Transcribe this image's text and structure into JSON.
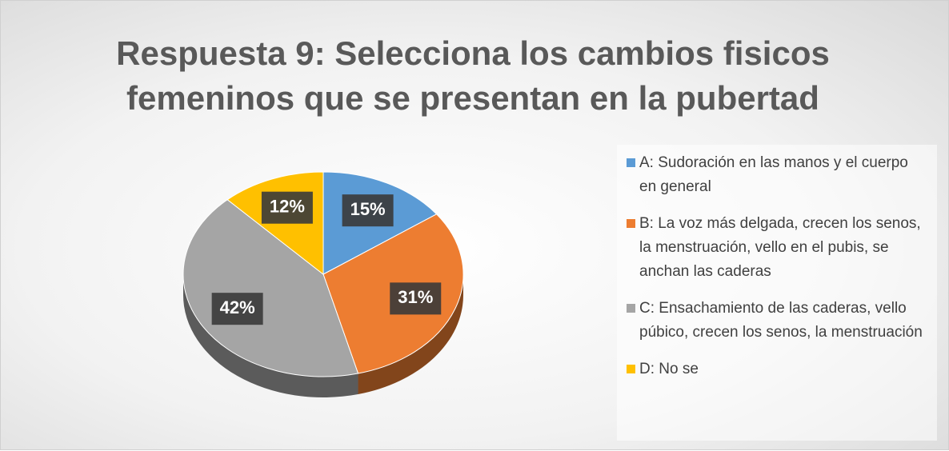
{
  "chart_data": {
    "type": "pie",
    "title": "Respuesta 9: Selecciona los cambios fisicos femeninos que se presentan en la pubertad",
    "categories": [
      "A:  Sudoración en las manos y el cuerpo en general",
      "B:  La voz más delgada, crecen los senos, la menstruación, vello en el pubis, se anchan las caderas",
      "C:  Ensachamiento de las caderas, vello púbico, crecen los senos, la menstruación",
      "D:  No se"
    ],
    "values": [
      15,
      31,
      42,
      12
    ],
    "value_labels": [
      "15%",
      "31%",
      "42%",
      "12%"
    ],
    "colors": [
      "#5b9bd5",
      "#ed7d31",
      "#a5a5a5",
      "#ffc000"
    ],
    "legend": "right"
  }
}
